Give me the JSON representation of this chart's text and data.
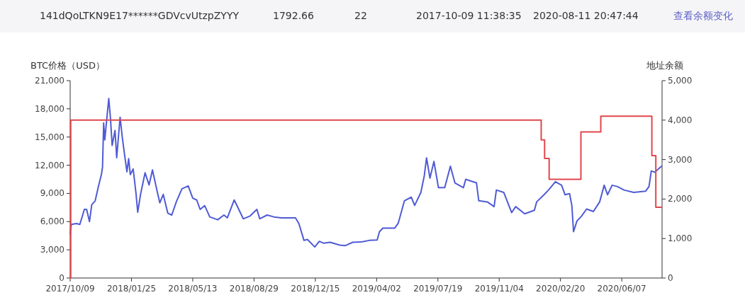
{
  "chart_data": {
    "type": "line",
    "ylabel": "BTC价格（USD）",
    "y2label": "地址余额",
    "annotations": [
      "141dQoLTKN9E17******GDVcvUtzpZYYY",
      "1792.66",
      "22",
      "2017-10-09 11:38:35",
      "2020-08-11 20:47:44",
      "查看余额变化"
    ],
    "xlim": [
      "2017-10-09",
      "2020-08-17"
    ],
    "xticks": [
      {
        "value": "2017-10-09",
        "label": "2017/10/09"
      },
      {
        "value": "2018-01-25",
        "label": "2018/01/25"
      },
      {
        "value": "2018-05-13",
        "label": "2018/05/13"
      },
      {
        "value": "2018-08-29",
        "label": "2018/08/29"
      },
      {
        "value": "2018-12-15",
        "label": "2018/12/15"
      },
      {
        "value": "2019-04-02",
        "label": "2019/04/02"
      },
      {
        "value": "2019-07-19",
        "label": "2019/07/19"
      },
      {
        "value": "2019-11-04",
        "label": "2019/11/04"
      },
      {
        "value": "2020-02-20",
        "label": "2020/02/20"
      },
      {
        "value": "2020-06-07",
        "label": "2020/06/07"
      }
    ],
    "ylim": [
      0,
      21000
    ],
    "yticks": [
      0,
      {
        "value": 3000,
        "label": "3,000"
      },
      {
        "value": 6000,
        "label": "6,000"
      },
      {
        "value": 9000,
        "label": "9,000"
      },
      {
        "value": 12000,
        "label": "12,000"
      },
      {
        "value": 15000,
        "label": "15,000"
      },
      {
        "value": 18000,
        "label": "18,000"
      },
      {
        "value": 21000,
        "label": "21,000"
      }
    ],
    "y2lim": [
      0,
      5000
    ],
    "y2ticks": [
      0,
      {
        "value": 1000,
        "label": "1,000"
      },
      {
        "value": 2000,
        "label": "2,000"
      },
      {
        "value": 3000,
        "label": "3,000"
      },
      {
        "value": 4000,
        "label": "4,000"
      },
      {
        "value": 5000,
        "label": "5,000"
      }
    ],
    "grid": false,
    "series": [
      {
        "color": "#4f5bd5",
        "axis": "y",
        "x": [
          "2017-10-09",
          "2017-10-11",
          "2017-10-20",
          "2017-10-26",
          "2017-11-03",
          "2017-11-07",
          "2017-11-12",
          "2017-11-16",
          "2017-11-22",
          "2017-11-28",
          "2017-12-03",
          "2017-12-05",
          "2017-12-07",
          "2017-12-09",
          "2017-12-12",
          "2017-12-16",
          "2017-12-19",
          "2017-12-22",
          "2017-12-27",
          "2017-12-30",
          "2018-01-02",
          "2018-01-05",
          "2018-01-09",
          "2018-01-12",
          "2018-01-17",
          "2018-01-20",
          "2018-01-23",
          "2018-01-28",
          "2018-02-02",
          "2018-02-05",
          "2018-02-10",
          "2018-02-18",
          "2018-02-25",
          "2018-03-03",
          "2018-03-11",
          "2018-03-16",
          "2018-03-22",
          "2018-03-30",
          "2018-04-06",
          "2018-04-14",
          "2018-04-24",
          "2018-05-05",
          "2018-05-13",
          "2018-05-20",
          "2018-05-26",
          "2018-06-03",
          "2018-06-12",
          "2018-06-26",
          "2018-07-07",
          "2018-07-13",
          "2018-07-25",
          "2018-07-30",
          "2018-08-10",
          "2018-08-22",
          "2018-09-03",
          "2018-09-08",
          "2018-09-21",
          "2018-10-03",
          "2018-10-16",
          "2018-11-10",
          "2018-11-16",
          "2018-11-25",
          "2018-12-01",
          "2018-12-14",
          "2018-12-22",
          "2018-12-30",
          "2019-01-10",
          "2019-01-27",
          "2019-02-06",
          "2019-02-19",
          "2019-03-08",
          "2019-03-20",
          "2019-04-03",
          "2019-04-07",
          "2019-04-13",
          "2019-05-04",
          "2019-05-10",
          "2019-05-17",
          "2019-05-21",
          "2019-06-02",
          "2019-06-08",
          "2019-06-19",
          "2019-06-25",
          "2019-06-29",
          "2019-07-05",
          "2019-07-12",
          "2019-07-20",
          "2019-07-31",
          "2019-08-10",
          "2019-08-18",
          "2019-09-02",
          "2019-09-06",
          "2019-09-25",
          "2019-09-29",
          "2019-10-14",
          "2019-10-26",
          "2019-10-30",
          "2019-11-12",
          "2019-11-26",
          "2019-12-03",
          "2019-12-19",
          "2020-01-05",
          "2020-01-09",
          "2020-01-22",
          "2020-01-30",
          "2020-02-11",
          "2020-02-22",
          "2020-02-28",
          "2020-03-07",
          "2020-03-11",
          "2020-03-14",
          "2020-03-20",
          "2020-03-28",
          "2020-04-06",
          "2020-04-18",
          "2020-04-29",
          "2020-05-07",
          "2020-05-13",
          "2020-05-21",
          "2020-05-30",
          "2020-06-11",
          "2020-06-28",
          "2020-07-19",
          "2020-07-25",
          "2020-07-29",
          "2020-08-04",
          "2020-08-16"
        ],
        "values": [
          4700,
          5700,
          5800,
          5700,
          7300,
          7300,
          6000,
          7800,
          8200,
          9800,
          11000,
          11800,
          16500,
          14700,
          16600,
          19100,
          17000,
          14100,
          15700,
          12800,
          15000,
          17100,
          14900,
          13500,
          11300,
          12700,
          11000,
          11600,
          9000,
          7000,
          8900,
          11200,
          9900,
          11500,
          9300,
          8000,
          8900,
          6900,
          6700,
          8100,
          9500,
          9800,
          8500,
          8300,
          7300,
          7700,
          6500,
          6200,
          6700,
          6400,
          8300,
          7700,
          6300,
          6600,
          7300,
          6300,
          6700,
          6500,
          6400,
          6400,
          5800,
          4000,
          4100,
          3300,
          3900,
          3700,
          3800,
          3500,
          3450,
          3800,
          3850,
          4000,
          4050,
          4930,
          5310,
          5310,
          5820,
          7340,
          8220,
          8600,
          7720,
          9110,
          10880,
          12780,
          10630,
          12400,
          9610,
          9610,
          11890,
          10120,
          9610,
          10500,
          10120,
          8220,
          8100,
          7590,
          9360,
          9110,
          6960,
          7590,
          6830,
          7210,
          8100,
          8860,
          9360,
          10250,
          9870,
          8860,
          8980,
          7720,
          4930,
          6070,
          6580,
          7340,
          7080,
          8100,
          9870,
          8860,
          9870,
          9740,
          9360,
          9110,
          9230,
          9740,
          11390,
          11260,
          11890
        ]
      },
      {
        "type": "step",
        "color": "#e0474c",
        "axis": "y2",
        "x": [
          "2017-10-09",
          "2017-10-10",
          "2020-01-17",
          "2020-01-23",
          "2020-01-31",
          "2020-03-27",
          "2020-05-01",
          "2020-07-30",
          "2020-08-06",
          "2020-08-16"
        ],
        "values": [
          0,
          4000,
          3500,
          3030,
          2500,
          3700,
          4100,
          3100,
          1790,
          1790
        ]
      }
    ]
  }
}
